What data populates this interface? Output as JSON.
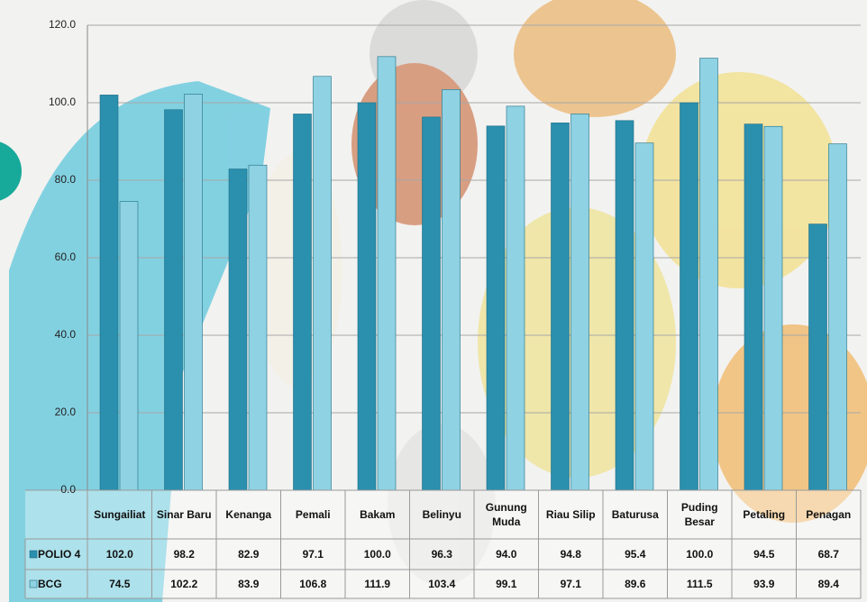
{
  "chart_data": {
    "type": "bar",
    "categories": [
      "Sungailiat",
      "Sinar Baru",
      "Kenanga",
      "Pemali",
      "Bakam",
      "Belinyu",
      "Gunung Muda",
      "Riau Silip",
      "Baturusa",
      "Puding Besar",
      "Petaling",
      "Penagan"
    ],
    "series": [
      {
        "name": "POLIO 4",
        "color": "#2b8fae",
        "values": [
          102,
          98.2,
          82.9,
          97.1,
          100,
          96.3,
          94,
          94.8,
          95.4,
          100,
          94.5,
          68.7
        ],
        "value_labels": [
          "102.0",
          "98.2",
          "82.9",
          "97.1",
          "100.0",
          "96.3",
          "94.0",
          "94.8",
          "95.4",
          "100.0",
          "94.5",
          "68.7"
        ]
      },
      {
        "name": "BCG",
        "color": "#8fd2e3",
        "values": [
          74.5,
          102.2,
          83.9,
          106.8,
          111.9,
          103.4,
          99.1,
          97.1,
          89.6,
          111.5,
          93.9,
          89.4
        ],
        "value_labels": [
          "74.5",
          "102.2",
          "83.9",
          "106.8",
          "111.9",
          "103.4",
          "99.1",
          "97.1",
          "89.6",
          "111.5",
          "93.9",
          "89.4"
        ]
      }
    ],
    "ylim": [
      0,
      120
    ],
    "yticks": [
      {
        "value": 0,
        "label": "0.0"
      },
      {
        "value": 20,
        "label": "20.0"
      },
      {
        "value": 40,
        "label": "40.0"
      },
      {
        "value": 60,
        "label": "60.0"
      },
      {
        "value": 80,
        "label": "80.0"
      },
      {
        "value": 100,
        "label": "100.0"
      },
      {
        "value": 120,
        "label": "120.0"
      }
    ],
    "grid": true
  }
}
